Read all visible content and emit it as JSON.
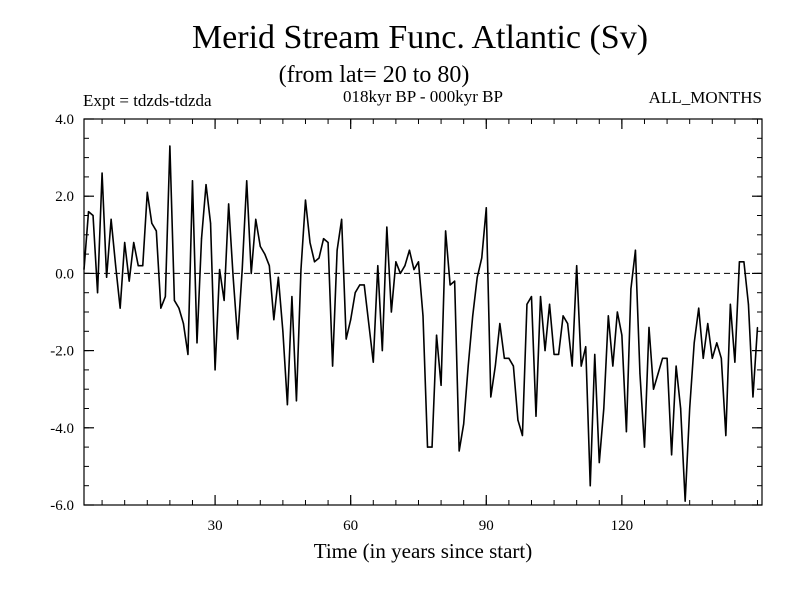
{
  "chart_data": {
    "type": "line",
    "title": "Merid Stream Func. Atlantic (Sv)",
    "subtitle": "(from lat= 20 to 80)",
    "expt_label": "Expt = tdzds-tdzda",
    "period_label": "018kyr BP - 000kyr BP",
    "months_label": "ALL_MONTHS",
    "xlabel": "Time (in years since start)",
    "ylabel": "",
    "xlim": [
      1,
      151
    ],
    "ylim": [
      -6.0,
      4.0
    ],
    "x_ticks": [
      30,
      60,
      90,
      120
    ],
    "x_tick_labels": [
      "30",
      "60",
      "90",
      "120"
    ],
    "y_ticks": [
      4.0,
      2.0,
      0.0,
      -2.0,
      -4.0,
      -6.0
    ],
    "y_tick_labels": [
      "4.0",
      "2.0",
      "0.0",
      "-2.0",
      "-4.0",
      "-6.0"
    ],
    "reference_line": 0.0,
    "x_start": 1,
    "x_step": 1,
    "series": [
      {
        "name": "Merid Stream Func.",
        "values": [
          0.1,
          1.6,
          1.5,
          -0.5,
          2.6,
          -0.1,
          1.4,
          0.2,
          -0.9,
          0.8,
          -0.2,
          0.8,
          0.2,
          0.2,
          2.1,
          1.3,
          1.1,
          -0.9,
          -0.6,
          3.3,
          -0.7,
          -0.9,
          -1.3,
          -2.1,
          2.4,
          -1.8,
          0.9,
          2.3,
          1.3,
          -2.5,
          0.1,
          -0.7,
          1.8,
          -0.1,
          -1.7,
          0.1,
          2.4,
          0.0,
          1.4,
          0.7,
          0.5,
          0.2,
          -1.2,
          -0.1,
          -1.5,
          -3.4,
          -0.6,
          -3.3,
          0.1,
          1.9,
          0.8,
          0.3,
          0.4,
          0.9,
          0.8,
          -2.4,
          0.6,
          1.4,
          -1.7,
          -1.2,
          -0.5,
          -0.3,
          -0.3,
          -1.3,
          -2.3,
          0.2,
          -2.0,
          1.2,
          -1.0,
          0.3,
          0.0,
          0.2,
          0.6,
          0.1,
          0.3,
          -1.1,
          -4.5,
          -4.5,
          -1.6,
          -2.9,
          1.1,
          -0.3,
          -0.2,
          -4.6,
          -3.9,
          -2.4,
          -1.1,
          -0.1,
          0.4,
          1.7,
          -3.2,
          -2.4,
          -1.3,
          -2.2,
          -2.2,
          -2.4,
          -3.8,
          -4.2,
          -0.8,
          -0.6,
          -3.7,
          -0.6,
          -2.0,
          -0.8,
          -2.1,
          -2.1,
          -1.1,
          -1.3,
          -2.4,
          0.2,
          -2.4,
          -1.9,
          -5.5,
          -2.1,
          -4.9,
          -3.5,
          -1.1,
          -2.4,
          -1.0,
          -1.6,
          -4.1,
          -0.4,
          0.6,
          -2.6,
          -4.5,
          -1.4,
          -3.0,
          -2.6,
          -2.2,
          -2.2,
          -4.7,
          -2.4,
          -3.5,
          -5.9,
          -3.5,
          -1.8,
          -0.9,
          -2.2,
          -1.3,
          -2.2,
          -1.8,
          -2.2,
          -4.2,
          -0.8,
          -2.3,
          0.3,
          0.3,
          -0.8,
          -3.2,
          -1.4
        ]
      }
    ]
  }
}
